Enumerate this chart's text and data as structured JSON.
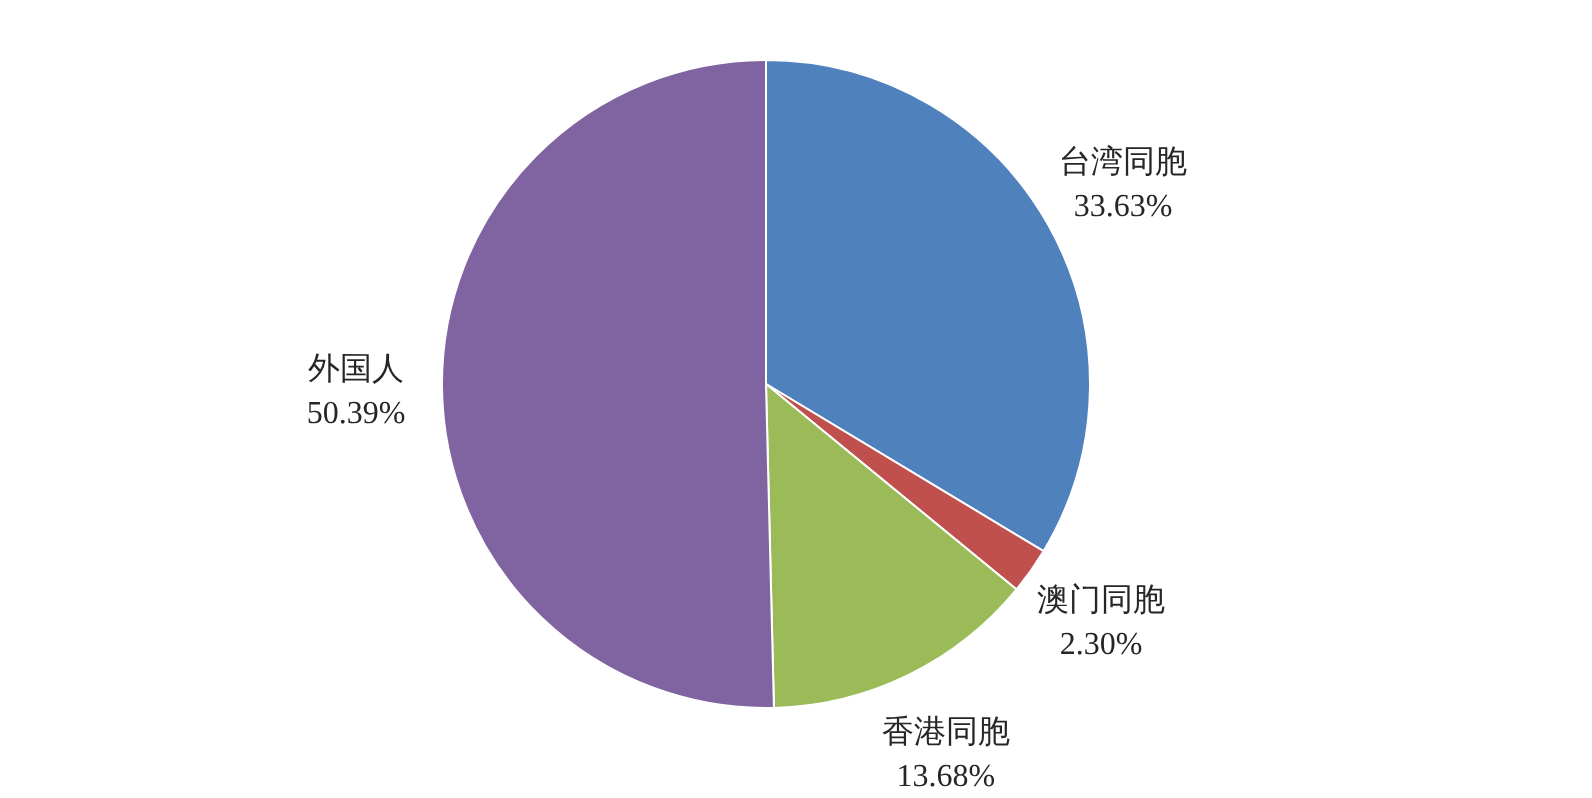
{
  "chart_data": {
    "type": "pie",
    "categories": [
      "台湾同胞",
      "澳门同胞",
      "香港同胞",
      "外国人"
    ],
    "values": [
      33.63,
      2.3,
      13.68,
      50.39
    ],
    "colors": [
      "#4f81bd",
      "#c0504d",
      "#9bbb59",
      "#8064a2"
    ],
    "value_labels": [
      "33.63%",
      "2.30%",
      "13.68%",
      "50.39%"
    ]
  }
}
